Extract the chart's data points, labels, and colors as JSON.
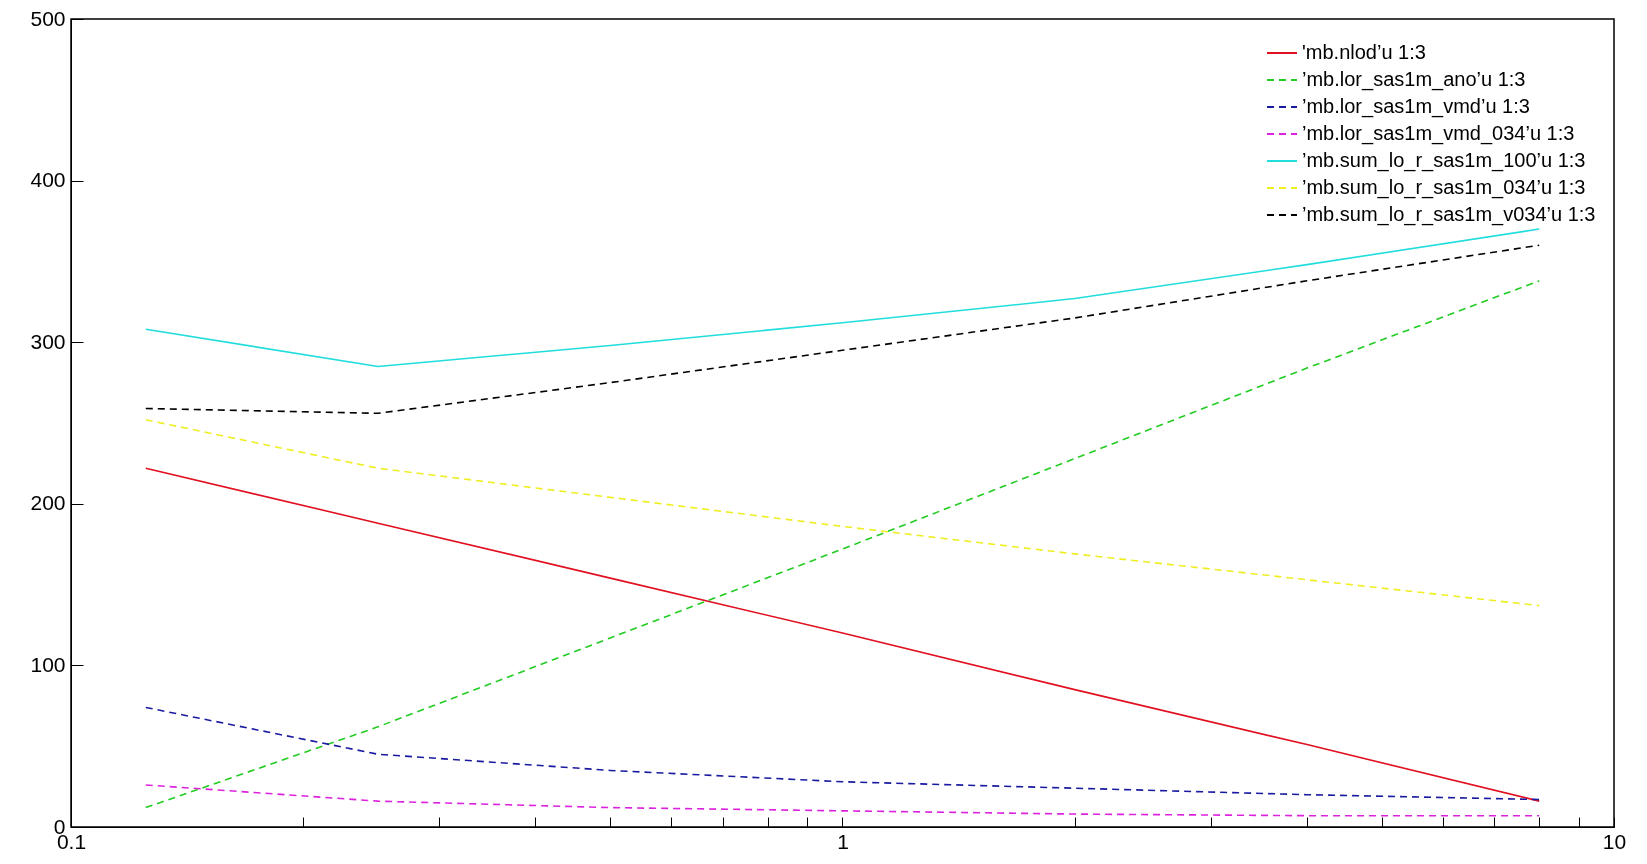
{
  "chart_data": {
    "type": "line",
    "x": [
      0.125,
      0.25,
      0.5,
      1,
      2,
      4,
      8
    ],
    "xlim": [
      0.1,
      10
    ],
    "xticks": [
      0.1,
      {
        "value": 0.2,
        "label": null
      },
      {
        "value": 0.3,
        "label": null
      },
      {
        "value": 0.4,
        "label": null
      },
      {
        "value": 0.5,
        "label": null
      },
      {
        "value": 0.6,
        "label": null
      },
      {
        "value": 0.7,
        "label": null
      },
      {
        "value": 0.8,
        "label": null
      },
      {
        "value": 0.9,
        "label": null
      },
      1,
      {
        "value": 2,
        "label": null
      },
      {
        "value": 3,
        "label": null
      },
      {
        "value": 4,
        "label": null
      },
      {
        "value": 5,
        "label": null
      },
      {
        "value": 6,
        "label": null
      },
      {
        "value": 7,
        "label": null
      },
      {
        "value": 8,
        "label": null
      },
      {
        "value": 9,
        "label": null
      },
      10
    ],
    "ylim": [
      0,
      500
    ],
    "yticks": [
      0,
      100,
      200,
      300,
      400,
      500
    ],
    "log": "x",
    "grid": false,
    "legend": "top right",
    "series": [
      {
        "name": "'mb.nlod’u 1:3",
        "color": "#e01020",
        "line_style": "solid",
        "values": [
          222,
          188,
          154,
          120,
          85,
          51,
          16
        ]
      },
      {
        "name": "’mb.lor_sas1m_ano’u 1:3",
        "color": "#22cc22",
        "line_style": "dashed",
        "values": [
          12,
          62,
          117,
          172,
          228,
          284,
          338
        ]
      },
      {
        "name": "’mb.lor_sas1m_vmd’u 1:3",
        "color": "#1a1aa0",
        "line_style": "dashed",
        "values": [
          74,
          45,
          35,
          28,
          24,
          20,
          17
        ]
      },
      {
        "name": "’mb.lor_sas1m_vmd_034’u 1:3",
        "color": "#dd22dd",
        "line_style": "dashed",
        "values": [
          26,
          16,
          12,
          10,
          8,
          7,
          7
        ]
      },
      {
        "name": "’mb.sum_lo_r_sas1m_100’u 1:3",
        "color": "#22dddd",
        "line_style": "solid",
        "values": [
          308,
          285,
          298,
          312,
          327,
          348,
          370
        ]
      },
      {
        "name": "’mb.sum_lo_r_sas1m_034’u 1:3",
        "color": "#eeee22",
        "line_style": "dashed",
        "values": [
          252,
          222,
          204,
          186,
          169,
          153,
          137
        ]
      },
      {
        "name": "’mb.sum_lo_r_sas1m_v034’u 1:3",
        "color": "#000000",
        "line_style": "dashed",
        "values": [
          259,
          256,
          275,
          295,
          315,
          338,
          360
        ]
      }
    ]
  }
}
